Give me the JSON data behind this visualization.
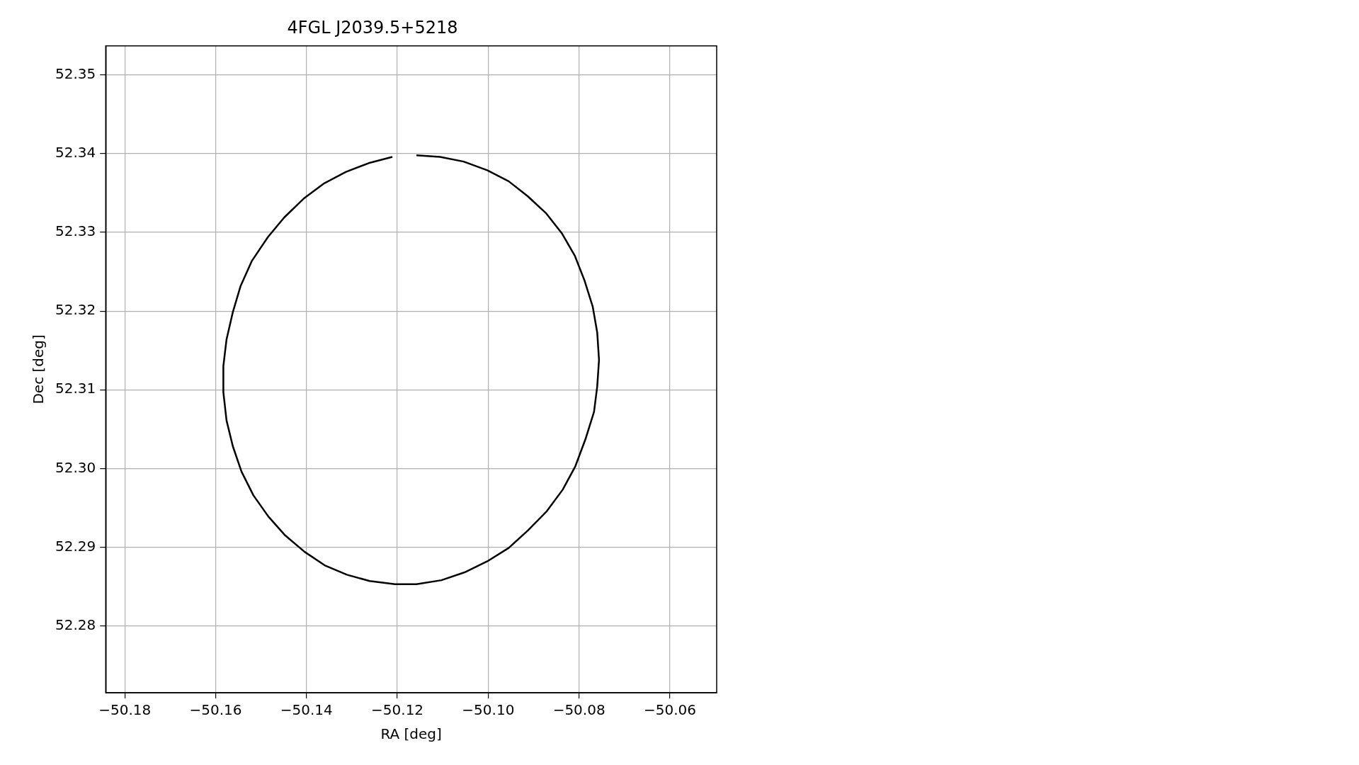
{
  "chart_data": {
    "type": "line",
    "title": "4FGL J2039.5+5218",
    "xlabel": "RA [deg]",
    "ylabel": "Dec [deg]",
    "xlim": [
      -50.1842,
      -50.0497
    ],
    "ylim": [
      52.2715,
      52.3537
    ],
    "xticks": [
      {
        "value": -50.18,
        "label": "−50.18"
      },
      {
        "value": -50.16,
        "label": "−50.16"
      },
      {
        "value": -50.14,
        "label": "−50.14"
      },
      {
        "value": -50.12,
        "label": "−50.12"
      },
      {
        "value": -50.1,
        "label": "−50.10"
      },
      {
        "value": -50.08,
        "label": "−50.08"
      },
      {
        "value": -50.06,
        "label": "−50.06"
      }
    ],
    "yticks": [
      52.28,
      52.29,
      {
        "value": 52.3,
        "label": "52.30"
      },
      52.31,
      52.32,
      52.33,
      52.34,
      52.35
    ],
    "grid": true,
    "marker": "none",
    "line_style": "solid",
    "series": [
      {
        "color": "#000000",
        "x": [
          -50.1158,
          -50.1106,
          -50.1054,
          -50.1002,
          -50.0955,
          -50.0913,
          -50.0872,
          -50.0838,
          -50.0809,
          -50.0788,
          -50.077,
          -50.076,
          -50.0756,
          -50.076,
          -50.0767,
          -50.0786,
          -50.0808,
          -50.0836,
          -50.0872,
          -50.0913,
          -50.0955,
          -50.1002,
          -50.1052,
          -50.1103,
          -50.1158,
          -50.1205,
          -50.1261,
          -50.1311,
          -50.136,
          -50.1404,
          -50.1447,
          -50.1484,
          -50.1517,
          -50.1543,
          -50.1562,
          -50.1576,
          -50.1583,
          -50.1583,
          -50.1576,
          -50.1562,
          -50.1545,
          -50.152,
          -50.1485,
          -50.1449,
          -50.1406,
          -50.1362,
          -50.1313,
          -50.1263,
          -50.1211
        ],
        "values": [
          52.3398,
          52.3396,
          52.339,
          52.3379,
          52.3365,
          52.3346,
          52.3324,
          52.3299,
          52.327,
          52.3239,
          52.3206,
          52.3173,
          52.3138,
          52.3104,
          52.3072,
          52.3037,
          52.3003,
          52.2973,
          52.2945,
          52.2921,
          52.2899,
          52.2882,
          52.2868,
          52.2858,
          52.2853,
          52.2853,
          52.2857,
          52.2865,
          52.2877,
          52.2894,
          52.2915,
          52.2939,
          52.2966,
          52.2996,
          52.3028,
          52.3061,
          52.3097,
          52.313,
          52.3164,
          52.3199,
          52.3232,
          52.3264,
          52.3294,
          52.3319,
          52.3343,
          52.3362,
          52.3377,
          52.3388,
          52.3396
        ]
      }
    ]
  }
}
